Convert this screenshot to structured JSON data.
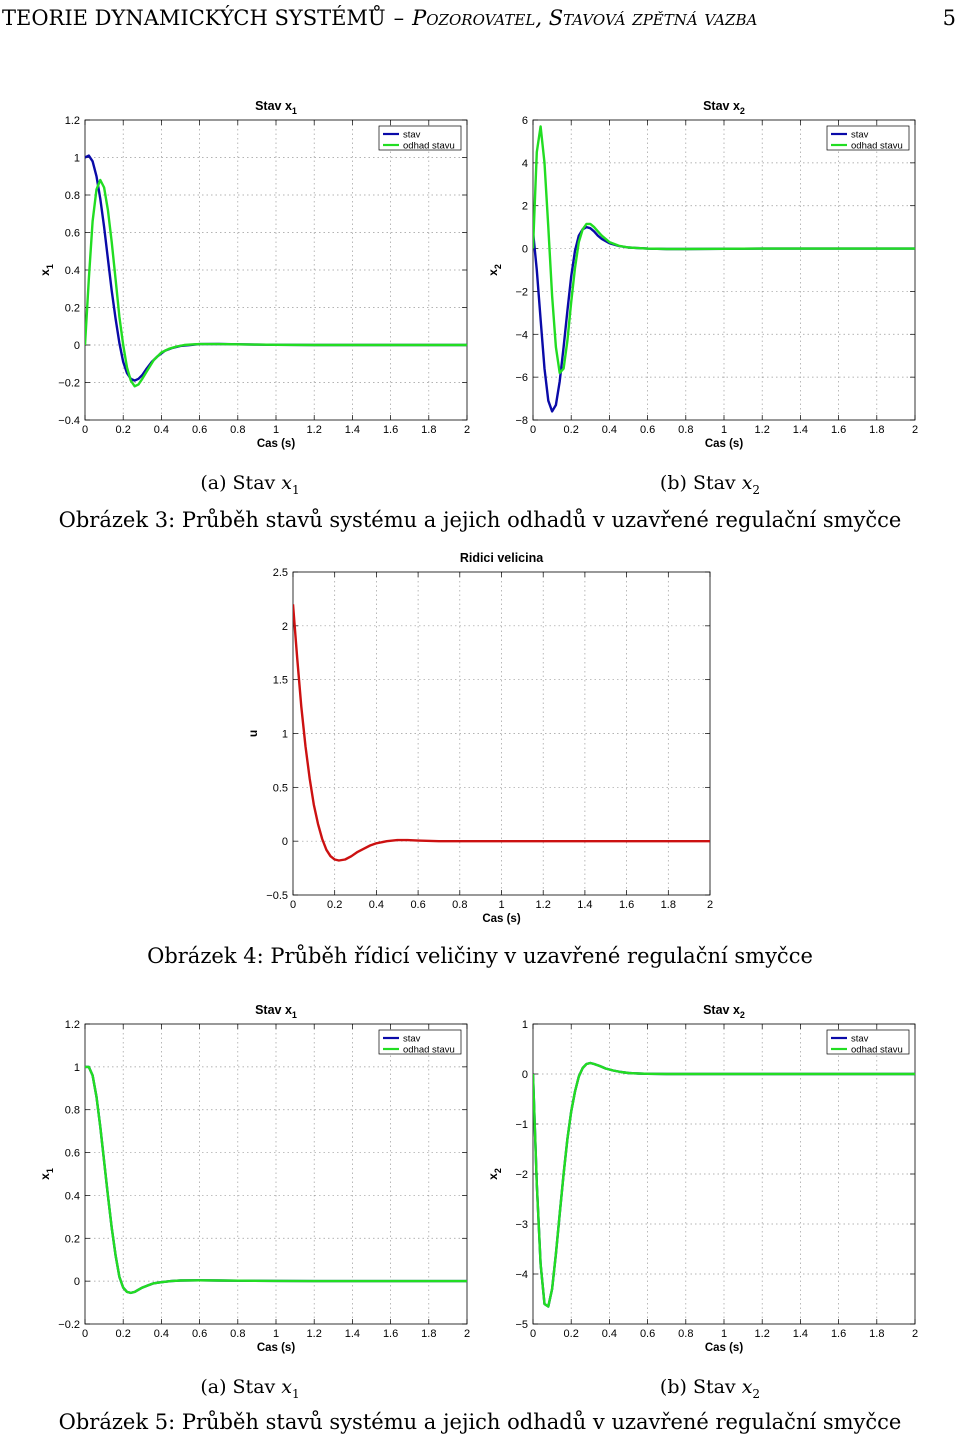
{
  "header": {
    "title": "TEORIE DYNAMICKÝCH SYSTÉMŮ",
    "separator": "–",
    "subtitle": "Pozorovatel, Stavová zpětná vazba",
    "page_number": "5"
  },
  "figures": {
    "fig3": {
      "caption": "Obrázek 3: Průběh stavů systému a jejich odhadů v uzavřené regulační smyčce",
      "sub_a": {
        "prefix": "(a) Stav ",
        "var": "x",
        "sub": "1"
      },
      "sub_b": {
        "prefix": "(b) Stav ",
        "var": "x",
        "sub": "2"
      }
    },
    "fig4": {
      "caption": "Obrázek 4: Průběh řídicí veličiny v uzavřené regulační smyčce"
    },
    "fig5": {
      "caption": "Obrázek 5: Průběh stavů systému a jejich odhadů v uzavřené regulační smyčce",
      "sub_a": {
        "prefix": "(a) Stav ",
        "var": "x",
        "sub": "1"
      },
      "sub_b": {
        "prefix": "(b) Stav ",
        "var": "x",
        "sub": "2"
      }
    }
  },
  "chart_data": [
    {
      "id": "fig3a",
      "type": "line",
      "title": "Stav x",
      "title_sub": "1",
      "xlabel": "Cas (s)",
      "ylabel": "x",
      "ylabel_sub": "1",
      "xlim": [
        0,
        2
      ],
      "ylim": [
        -0.4,
        1.2
      ],
      "xticks": [
        0,
        0.2,
        0.4,
        0.6,
        0.8,
        1,
        1.2,
        1.4,
        1.6,
        1.8,
        2
      ],
      "xtick_labels": [
        "0",
        "0.2",
        "0.4",
        "0.6",
        "0.8",
        "1",
        "1.2",
        "1.4",
        "1.6",
        "1.8",
        "2"
      ],
      "yticks": [
        -0.4,
        -0.2,
        0,
        0.2,
        0.4,
        0.6,
        0.8,
        1,
        1.2
      ],
      "ytick_labels": [
        "−0.4",
        "−0.2",
        "0",
        "0.2",
        "0.4",
        "0.6",
        "0.8",
        "1",
        "1.2"
      ],
      "grid": true,
      "legend": "top-right",
      "series": [
        {
          "name": "stav",
          "color": "#0a0aa8",
          "x": [
            0,
            0.02,
            0.04,
            0.06,
            0.08,
            0.1,
            0.12,
            0.14,
            0.16,
            0.18,
            0.2,
            0.22,
            0.24,
            0.26,
            0.28,
            0.3,
            0.32,
            0.35,
            0.38,
            0.42,
            0.46,
            0.5,
            0.55,
            0.6,
            0.7,
            0.8,
            0.9,
            1.0,
            1.2,
            1.5,
            2.0
          ],
          "y": [
            1.0,
            1.01,
            0.98,
            0.9,
            0.78,
            0.63,
            0.46,
            0.29,
            0.14,
            0.01,
            -0.09,
            -0.15,
            -0.18,
            -0.19,
            -0.18,
            -0.16,
            -0.13,
            -0.09,
            -0.06,
            -0.03,
            -0.015,
            -0.005,
            0.0,
            0.005,
            0.006,
            0.004,
            0.002,
            0.001,
            0.0,
            0.0,
            0.0
          ]
        },
        {
          "name": "odhad stavu",
          "color": "#22dd22",
          "x": [
            0,
            0.02,
            0.04,
            0.06,
            0.08,
            0.1,
            0.12,
            0.14,
            0.16,
            0.18,
            0.2,
            0.22,
            0.24,
            0.26,
            0.28,
            0.3,
            0.33,
            0.36,
            0.4,
            0.44,
            0.48,
            0.52,
            0.56,
            0.6,
            0.7,
            0.8,
            0.9,
            1.0,
            1.2,
            1.5,
            2.0
          ],
          "y": [
            0.0,
            0.35,
            0.66,
            0.83,
            0.88,
            0.84,
            0.72,
            0.55,
            0.35,
            0.15,
            0.0,
            -0.12,
            -0.19,
            -0.22,
            -0.21,
            -0.18,
            -0.13,
            -0.08,
            -0.04,
            -0.02,
            -0.008,
            0.0,
            0.003,
            0.005,
            0.005,
            0.004,
            0.002,
            0.001,
            0.0,
            0.0,
            0.0
          ]
        }
      ]
    },
    {
      "id": "fig3b",
      "type": "line",
      "title": "Stav x",
      "title_sub": "2",
      "xlabel": "Cas (s)",
      "ylabel": "x",
      "ylabel_sub": "2",
      "xlim": [
        0,
        2
      ],
      "ylim": [
        -8,
        6
      ],
      "xticks": [
        0,
        0.2,
        0.4,
        0.6,
        0.8,
        1,
        1.2,
        1.4,
        1.6,
        1.8,
        2
      ],
      "xtick_labels": [
        "0",
        "0.2",
        "0.4",
        "0.6",
        "0.8",
        "1",
        "1.2",
        "1.4",
        "1.6",
        "1.8",
        "2"
      ],
      "yticks": [
        -8,
        -6,
        -4,
        -2,
        0,
        2,
        4,
        6
      ],
      "ytick_labels": [
        "−8",
        "−6",
        "−4",
        "−2",
        "0",
        "2",
        "4",
        "6"
      ],
      "grid": true,
      "legend": "top-right",
      "series": [
        {
          "name": "stav",
          "color": "#0a0aa8",
          "x": [
            0,
            0.02,
            0.04,
            0.06,
            0.08,
            0.1,
            0.12,
            0.14,
            0.16,
            0.18,
            0.2,
            0.22,
            0.24,
            0.26,
            0.28,
            0.3,
            0.32,
            0.34,
            0.36,
            0.4,
            0.45,
            0.5,
            0.55,
            0.6,
            0.7,
            0.8,
            1.0,
            1.2,
            1.5,
            2.0
          ],
          "y": [
            0.8,
            -1.0,
            -3.3,
            -5.6,
            -7.1,
            -7.6,
            -7.3,
            -6.2,
            -4.6,
            -2.9,
            -1.3,
            -0.1,
            0.6,
            0.9,
            1.0,
            0.95,
            0.8,
            0.6,
            0.45,
            0.25,
            0.12,
            0.05,
            0.02,
            0.0,
            -0.02,
            -0.02,
            -0.01,
            0.0,
            0.0,
            0.0
          ]
        },
        {
          "name": "odhad stavu",
          "color": "#22dd22",
          "x": [
            0,
            0.02,
            0.04,
            0.06,
            0.08,
            0.1,
            0.12,
            0.14,
            0.16,
            0.18,
            0.2,
            0.22,
            0.24,
            0.26,
            0.28,
            0.3,
            0.32,
            0.34,
            0.36,
            0.4,
            0.45,
            0.5,
            0.55,
            0.6,
            0.7,
            0.8,
            1.0,
            1.2,
            1.5,
            2.0
          ],
          "y": [
            0.0,
            4.5,
            5.7,
            4.0,
            1.0,
            -2.2,
            -4.6,
            -5.8,
            -5.6,
            -4.3,
            -2.5,
            -0.9,
            0.3,
            0.9,
            1.15,
            1.15,
            1.0,
            0.8,
            0.6,
            0.3,
            0.13,
            0.05,
            0.02,
            0.0,
            -0.02,
            -0.02,
            -0.01,
            0.0,
            0.0,
            0.0
          ]
        }
      ]
    },
    {
      "id": "fig4",
      "type": "line",
      "title": "Ridici velicina",
      "xlabel": "Cas (s)",
      "ylabel": "u",
      "xlim": [
        0,
        2
      ],
      "ylim": [
        -0.5,
        2.5
      ],
      "xticks": [
        0,
        0.2,
        0.4,
        0.6,
        0.8,
        1,
        1.2,
        1.4,
        1.6,
        1.8,
        2
      ],
      "xtick_labels": [
        "0",
        "0.2",
        "0.4",
        "0.6",
        "0.8",
        "1",
        "1.2",
        "1.4",
        "1.6",
        "1.8",
        "2"
      ],
      "yticks": [
        -0.5,
        0,
        0.5,
        1,
        1.5,
        2,
        2.5
      ],
      "ytick_labels": [
        "−0.5",
        "0",
        "0.5",
        "1",
        "1.5",
        "2",
        "2.5"
      ],
      "grid": true,
      "series": [
        {
          "color": "#cc1111",
          "x": [
            0,
            0.02,
            0.04,
            0.06,
            0.08,
            0.1,
            0.12,
            0.14,
            0.16,
            0.18,
            0.2,
            0.22,
            0.25,
            0.28,
            0.31,
            0.34,
            0.37,
            0.4,
            0.45,
            0.5,
            0.55,
            0.6,
            0.7,
            0.8,
            0.9,
            1.0,
            1.2,
            1.5,
            2.0
          ],
          "y": [
            2.2,
            1.7,
            1.25,
            0.88,
            0.58,
            0.34,
            0.16,
            0.02,
            -0.08,
            -0.14,
            -0.17,
            -0.18,
            -0.17,
            -0.14,
            -0.1,
            -0.07,
            -0.04,
            -0.02,
            0.0,
            0.01,
            0.01,
            0.005,
            0.0,
            0.0,
            0.0,
            0.0,
            0.0,
            0.0,
            0.0
          ]
        }
      ]
    },
    {
      "id": "fig5a",
      "type": "line",
      "title": "Stav x",
      "title_sub": "1",
      "xlabel": "Cas (s)",
      "ylabel": "x",
      "ylabel_sub": "1",
      "xlim": [
        0,
        2
      ],
      "ylim": [
        -0.2,
        1.2
      ],
      "xticks": [
        0,
        0.2,
        0.4,
        0.6,
        0.8,
        1,
        1.2,
        1.4,
        1.6,
        1.8,
        2
      ],
      "xtick_labels": [
        "0",
        "0.2",
        "0.4",
        "0.6",
        "0.8",
        "1",
        "1.2",
        "1.4",
        "1.6",
        "1.8",
        "2"
      ],
      "yticks": [
        -0.2,
        0,
        0.2,
        0.4,
        0.6,
        0.8,
        1,
        1.2
      ],
      "ytick_labels": [
        "−0.2",
        "0",
        "0.2",
        "0.4",
        "0.6",
        "0.8",
        "1",
        "1.2"
      ],
      "grid": true,
      "legend": "top-right",
      "series": [
        {
          "name": "stav",
          "color": "#0a0aa8",
          "x": [
            0,
            0.02,
            0.04,
            0.06,
            0.08,
            0.1,
            0.12,
            0.14,
            0.16,
            0.18,
            0.2,
            0.22,
            0.24,
            0.26,
            0.28,
            0.3,
            0.33,
            0.36,
            0.4,
            0.45,
            0.5,
            0.6,
            0.7,
            0.8,
            1.0,
            1.2,
            1.5,
            2.0
          ],
          "y": [
            1.0,
            1.0,
            0.96,
            0.86,
            0.72,
            0.56,
            0.4,
            0.25,
            0.12,
            0.02,
            -0.03,
            -0.05,
            -0.055,
            -0.05,
            -0.04,
            -0.03,
            -0.02,
            -0.01,
            -0.005,
            0.0,
            0.003,
            0.004,
            0.003,
            0.002,
            0.001,
            0.0,
            0.0,
            0.0
          ]
        },
        {
          "name": "odhad stavu",
          "color": "#22dd22",
          "x": [
            0,
            0.02,
            0.04,
            0.06,
            0.08,
            0.1,
            0.12,
            0.14,
            0.16,
            0.18,
            0.2,
            0.22,
            0.24,
            0.26,
            0.28,
            0.3,
            0.33,
            0.36,
            0.4,
            0.45,
            0.5,
            0.6,
            0.7,
            0.8,
            1.0,
            1.2,
            1.5,
            2.0
          ],
          "y": [
            1.0,
            1.0,
            0.96,
            0.86,
            0.72,
            0.56,
            0.4,
            0.25,
            0.12,
            0.02,
            -0.03,
            -0.05,
            -0.055,
            -0.05,
            -0.04,
            -0.03,
            -0.02,
            -0.01,
            -0.005,
            0.0,
            0.003,
            0.004,
            0.003,
            0.002,
            0.001,
            0.0,
            0.0,
            0.0
          ]
        }
      ]
    },
    {
      "id": "fig5b",
      "type": "line",
      "title": "Stav x",
      "title_sub": "2",
      "xlabel": "Cas (s)",
      "ylabel": "x",
      "ylabel_sub": "2",
      "xlim": [
        0,
        2
      ],
      "ylim": [
        -5,
        1
      ],
      "xticks": [
        0,
        0.2,
        0.4,
        0.6,
        0.8,
        1,
        1.2,
        1.4,
        1.6,
        1.8,
        2
      ],
      "xtick_labels": [
        "0",
        "0.2",
        "0.4",
        "0.6",
        "0.8",
        "1",
        "1.2",
        "1.4",
        "1.6",
        "1.8",
        "2"
      ],
      "yticks": [
        -5,
        -4,
        -3,
        -2,
        -1,
        0,
        1
      ],
      "ytick_labels": [
        "−5",
        "−4",
        "−3",
        "−2",
        "−1",
        "0",
        "1"
      ],
      "grid": true,
      "legend": "top-right",
      "series": [
        {
          "name": "stav",
          "color": "#0a0aa8",
          "x": [
            0,
            0.02,
            0.04,
            0.06,
            0.08,
            0.1,
            0.12,
            0.14,
            0.16,
            0.18,
            0.2,
            0.22,
            0.24,
            0.26,
            0.28,
            0.3,
            0.32,
            0.35,
            0.38,
            0.42,
            0.46,
            0.5,
            0.55,
            0.6,
            0.7,
            0.8,
            1.0,
            1.2,
            1.5,
            2.0
          ],
          "y": [
            0.0,
            -2.2,
            -3.8,
            -4.6,
            -4.65,
            -4.3,
            -3.6,
            -2.8,
            -2.0,
            -1.3,
            -0.75,
            -0.35,
            -0.05,
            0.12,
            0.2,
            0.22,
            0.2,
            0.16,
            0.11,
            0.07,
            0.04,
            0.02,
            0.01,
            0.005,
            0.0,
            0.0,
            0.0,
            0.0,
            0.0,
            0.0
          ]
        },
        {
          "name": "odhad stavu",
          "color": "#22dd22",
          "x": [
            0,
            0.02,
            0.04,
            0.06,
            0.08,
            0.1,
            0.12,
            0.14,
            0.16,
            0.18,
            0.2,
            0.22,
            0.24,
            0.26,
            0.28,
            0.3,
            0.32,
            0.35,
            0.38,
            0.42,
            0.46,
            0.5,
            0.55,
            0.6,
            0.7,
            0.8,
            1.0,
            1.2,
            1.5,
            2.0
          ],
          "y": [
            0.0,
            -2.2,
            -3.8,
            -4.6,
            -4.65,
            -4.3,
            -3.6,
            -2.8,
            -2.0,
            -1.3,
            -0.75,
            -0.35,
            -0.05,
            0.12,
            0.2,
            0.22,
            0.2,
            0.16,
            0.11,
            0.07,
            0.04,
            0.02,
            0.01,
            0.005,
            0.0,
            0.0,
            0.0,
            0.0,
            0.0,
            0.0
          ]
        }
      ]
    }
  ]
}
